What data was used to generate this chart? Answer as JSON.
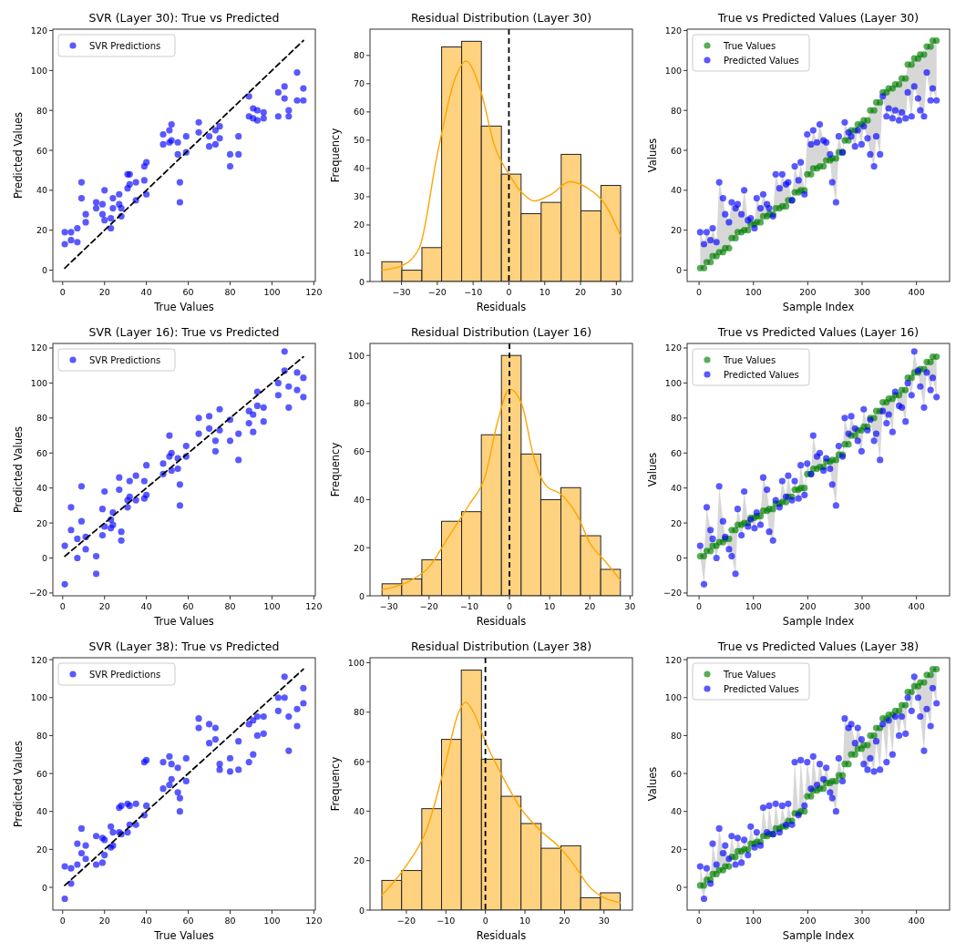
{
  "chart_data": [
    {
      "type": "scatter",
      "title": "SVR (Layer 30): True vs Predicted",
      "xlabel": "True Values",
      "ylabel": "Predicted Values",
      "xlim": [
        -4.7,
        120.7
      ],
      "ylim": [
        -5.7,
        120.7
      ],
      "xticks": [
        0,
        20,
        40,
        60,
        80,
        100,
        120
      ],
      "yticks": [
        0,
        20,
        40,
        60,
        80,
        100,
        120
      ],
      "legend": "top left",
      "marker": "circle",
      "x": [
        1,
        1,
        4,
        4,
        7,
        7,
        9,
        9,
        11,
        11,
        16,
        16,
        19,
        19,
        20,
        20,
        23,
        23,
        24,
        24,
        27,
        27,
        28,
        28,
        31,
        31,
        32,
        32,
        35,
        35,
        39,
        39,
        40,
        40,
        48,
        48,
        51,
        51,
        52,
        52,
        55,
        55,
        56,
        56,
        59,
        59,
        65,
        65,
        70,
        70,
        73,
        73,
        75,
        75,
        80,
        80,
        84,
        84,
        89,
        89,
        91,
        91,
        93,
        93,
        96,
        96,
        103,
        103,
        106,
        106,
        108,
        108,
        112,
        112,
        115,
        115
      ],
      "series": [
        {
          "name": "SVR Predictions",
          "color": "#0000ff",
          "values": [
            19,
            13,
            19,
            15,
            21,
            14,
            44,
            36,
            28,
            24,
            34,
            31,
            33,
            28,
            40,
            25,
            26,
            21,
            36,
            31,
            38,
            33,
            31,
            27,
            48,
            41,
            48,
            43,
            44,
            35,
            52,
            45,
            54,
            38,
            68,
            63,
            70,
            64,
            73,
            65,
            64,
            58,
            44,
            34,
            67,
            59,
            74,
            69,
            67,
            62,
            70,
            63,
            72,
            66,
            58,
            52,
            67,
            58,
            87,
            77,
            81,
            76,
            80,
            75,
            79,
            76,
            89,
            77,
            92,
            86,
            80,
            77,
            99,
            85,
            91,
            85
          ]
        },
        {
          "type": "line",
          "x": [
            1,
            115
          ],
          "values": [
            1,
            115
          ],
          "color": "#000000",
          "line_style": "dashed",
          "marker": "none"
        }
      ]
    },
    {
      "type": "histogram",
      "title": "Residual Distribution (Layer 30)",
      "xlabel": "Residuals",
      "ylabel": "Frequency",
      "xlim": [
        -38.8,
        34.5
      ],
      "ylim": [
        0,
        89.3
      ],
      "xticks": [
        -30,
        -20,
        -10,
        0,
        10,
        20,
        30
      ],
      "yticks": [
        0,
        10,
        20,
        30,
        40,
        50,
        60,
        70,
        80
      ],
      "bins": [
        -35.5,
        -29.9,
        -24.3,
        -18.8,
        -13.2,
        -7.7,
        -2.1,
        3.4,
        9.0,
        14.6,
        20.1,
        25.7,
        31.2
      ],
      "series": [
        {
          "color": "#ffd280",
          "values": [
            7,
            4,
            12,
            83,
            85,
            55,
            38,
            24,
            28,
            45,
            25,
            34
          ]
        },
        {
          "type": "line",
          "color": "#ffa500",
          "x": [
            -35.5,
            -30,
            -25,
            -20,
            -15,
            -12,
            -8,
            -4,
            0,
            4,
            7,
            12,
            17,
            22,
            27,
            31.2
          ],
          "values": [
            4,
            5.5,
            12,
            45,
            72,
            78,
            68,
            48,
            38,
            31,
            28.5,
            31,
            35.3,
            33,
            27,
            16
          ]
        }
      ],
      "ref_lines": [
        {
          "axis": "x",
          "value": 0,
          "color": "#000000",
          "line_style": "dashed"
        }
      ]
    },
    {
      "type": "scatter",
      "title": "True vs Predicted Values (Layer 30)",
      "xlabel": "Sample Index",
      "ylabel": "Values",
      "xlim": [
        -22,
        461
      ],
      "ylim": [
        -5.7,
        120.7
      ],
      "xticks": [
        0,
        100,
        200,
        300,
        400
      ],
      "yticks": [
        0,
        20,
        40,
        60,
        80,
        100,
        120
      ],
      "legend": "top left",
      "marker": "circle",
      "x": [
        2,
        9,
        14,
        21,
        25,
        32,
        37,
        44,
        48,
        55,
        60,
        67,
        71,
        78,
        83,
        90,
        95,
        102,
        106,
        113,
        118,
        125,
        129,
        136,
        141,
        148,
        153,
        160,
        164,
        171,
        176,
        183,
        187,
        194,
        199,
        206,
        210,
        217,
        222,
        229,
        234,
        241,
        245,
        252,
        257,
        264,
        268,
        275,
        280,
        287,
        292,
        299,
        303,
        310,
        315,
        322,
        326,
        333,
        338,
        345,
        349,
        356,
        361,
        368,
        373,
        380,
        384,
        391,
        396,
        403,
        407,
        414,
        419,
        426,
        430,
        437
      ],
      "series": [
        {
          "name": "True Values",
          "color": "#008000",
          "values": [
            1,
            1,
            4,
            4,
            7,
            7,
            9,
            9,
            11,
            11,
            16,
            16,
            19,
            19,
            20,
            20,
            23,
            23,
            24,
            24,
            27,
            27,
            28,
            28,
            31,
            31,
            32,
            32,
            35,
            35,
            39,
            39,
            40,
            40,
            48,
            48,
            51,
            51,
            52,
            52,
            55,
            55,
            56,
            56,
            59,
            59,
            65,
            65,
            70,
            70,
            73,
            73,
            75,
            75,
            80,
            80,
            84,
            84,
            89,
            89,
            91,
            91,
            93,
            93,
            96,
            96,
            103,
            103,
            106,
            106,
            108,
            108,
            112,
            112,
            115,
            115
          ]
        },
        {
          "name": "Predicted Values",
          "color": "#0000ff",
          "values": [
            19,
            13,
            19,
            15,
            21,
            14,
            44,
            36,
            28,
            24,
            34,
            31,
            33,
            28,
            40,
            25,
            26,
            21,
            36,
            31,
            38,
            33,
            31,
            27,
            48,
            41,
            48,
            43,
            44,
            35,
            52,
            45,
            54,
            38,
            68,
            63,
            70,
            64,
            73,
            65,
            64,
            58,
            44,
            34,
            67,
            59,
            74,
            69,
            67,
            62,
            70,
            63,
            72,
            66,
            58,
            52,
            67,
            58,
            87,
            77,
            81,
            76,
            80,
            75,
            79,
            76,
            89,
            77,
            92,
            86,
            80,
            77,
            99,
            85,
            91,
            85
          ],
          "lower": [
            1,
            1,
            4,
            4,
            7,
            7,
            9,
            9,
            11,
            11,
            16,
            16,
            19,
            19,
            20,
            20,
            23,
            21,
            24,
            24,
            27,
            27,
            28,
            27,
            31,
            31,
            32,
            32,
            35,
            35,
            39,
            39,
            40,
            38,
            48,
            48,
            51,
            51,
            52,
            52,
            55,
            55,
            44,
            34,
            59,
            59,
            65,
            65,
            67,
            62,
            70,
            63,
            72,
            66,
            58,
            52,
            67,
            58,
            87,
            77,
            81,
            76,
            80,
            75,
            79,
            76,
            89,
            77,
            92,
            86,
            80,
            77,
            99,
            85,
            91,
            85
          ],
          "upper": [
            19,
            13,
            19,
            15,
            21,
            14,
            44,
            36,
            28,
            24,
            34,
            31,
            33,
            28,
            40,
            25,
            26,
            23,
            36,
            31,
            38,
            33,
            31,
            28,
            48,
            41,
            48,
            43,
            44,
            35,
            52,
            45,
            54,
            40,
            68,
            63,
            70,
            64,
            73,
            65,
            64,
            58,
            56,
            56,
            67,
            59,
            74,
            69,
            70,
            70,
            73,
            73,
            75,
            75,
            80,
            80,
            84,
            84,
            89,
            89,
            91,
            91,
            93,
            93,
            96,
            96,
            103,
            103,
            106,
            106,
            108,
            108,
            112,
            112,
            115,
            115
          ]
        }
      ]
    },
    {
      "type": "scatter",
      "title": "SVR (Layer 16): True vs Predicted",
      "xlabel": "True Values",
      "ylabel": "Predicted Values",
      "xlim": [
        -4.7,
        120.7
      ],
      "ylim": [
        -21.6,
        122.6
      ],
      "xticks": [
        0,
        20,
        40,
        60,
        80,
        100,
        120
      ],
      "yticks": [
        -20,
        0,
        20,
        40,
        60,
        80,
        100,
        120
      ],
      "legend": "top left",
      "marker": "circle",
      "x": [
        1,
        1,
        4,
        4,
        7,
        7,
        9,
        9,
        11,
        11,
        16,
        16,
        19,
        19,
        20,
        20,
        23,
        23,
        24,
        24,
        27,
        27,
        28,
        28,
        31,
        31,
        32,
        32,
        35,
        35,
        39,
        39,
        40,
        40,
        48,
        48,
        51,
        51,
        52,
        52,
        55,
        55,
        56,
        56,
        59,
        59,
        65,
        65,
        70,
        70,
        73,
        73,
        75,
        75,
        80,
        80,
        84,
        84,
        89,
        89,
        91,
        91,
        93,
        93,
        96,
        96,
        103,
        103,
        106,
        106,
        108,
        108,
        112,
        112,
        115,
        115
      ],
      "series": [
        {
          "name": "SVR Predictions",
          "color": "#0000ff",
          "values": [
            7,
            -15,
            29,
            16,
            11,
            0,
            41,
            21,
            12,
            5,
            1,
            -9,
            28,
            13,
            38,
            18,
            22,
            17,
            26,
            19,
            46,
            39,
            15,
            10,
            33,
            29,
            44,
            35,
            47,
            33,
            44,
            34,
            53,
            36,
            54,
            48,
            70,
            58,
            60,
            50,
            57,
            51,
            42,
            30,
            64,
            58,
            80,
            71,
            81,
            74,
            67,
            61,
            85,
            73,
            79,
            67,
            71,
            56,
            84,
            77,
            82,
            72,
            95,
            87,
            86,
            78,
            100,
            93,
            118,
            107,
            98,
            86,
            106,
            96,
            103,
            92
          ]
        },
        {
          "type": "line",
          "x": [
            1,
            115
          ],
          "values": [
            1,
            115
          ],
          "color": "#000000",
          "line_style": "dashed",
          "marker": "none"
        }
      ]
    },
    {
      "type": "histogram",
      "title": "Residual Distribution (Layer 16)",
      "xlabel": "Residuals",
      "ylabel": "Frequency",
      "xlim": [
        -34.7,
        30.6
      ],
      "ylim": [
        0,
        105
      ],
      "xticks": [
        -30,
        -20,
        -10,
        0,
        10,
        20,
        30
      ],
      "yticks": [
        0,
        20,
        40,
        60,
        80,
        100
      ],
      "bins": [
        -31.7,
        -26.8,
        -21.8,
        -16.9,
        -11.9,
        -7.0,
        -2.0,
        2.9,
        7.8,
        12.8,
        17.7,
        22.7,
        27.6
      ],
      "series": [
        {
          "color": "#ffd280",
          "values": [
            5,
            7,
            15,
            31,
            35,
            67,
            100,
            59,
            40,
            45,
            25,
            11
          ]
        },
        {
          "type": "line",
          "color": "#ffa500",
          "x": [
            -31.7,
            -25,
            -20,
            -15,
            -10,
            -6,
            -3,
            0,
            3,
            6,
            9,
            13,
            17,
            20,
            24,
            27.6
          ],
          "values": [
            2.5,
            6,
            12,
            25,
            38,
            50,
            72,
            86,
            80,
            58,
            46,
            42,
            33,
            22,
            14,
            6.5
          ]
        }
      ],
      "ref_lines": [
        {
          "axis": "x",
          "value": 0,
          "color": "#000000",
          "line_style": "dashed"
        }
      ]
    },
    {
      "type": "scatter",
      "title": "True vs Predicted Values (Layer 16)",
      "xlabel": "Sample Index",
      "ylabel": "Values",
      "xlim": [
        -22,
        461
      ],
      "ylim": [
        -21.6,
        122.6
      ],
      "xticks": [
        0,
        100,
        200,
        300,
        400
      ],
      "yticks": [
        -20,
        0,
        20,
        40,
        60,
        80,
        100,
        120
      ],
      "legend": "top left",
      "marker": "circle",
      "x": [
        2,
        9,
        14,
        21,
        25,
        32,
        37,
        44,
        48,
        55,
        60,
        67,
        71,
        78,
        83,
        90,
        95,
        102,
        106,
        113,
        118,
        125,
        129,
        136,
        141,
        148,
        153,
        160,
        164,
        171,
        176,
        183,
        187,
        194,
        199,
        206,
        210,
        217,
        222,
        229,
        234,
        241,
        245,
        252,
        257,
        264,
        268,
        275,
        280,
        287,
        292,
        299,
        303,
        310,
        315,
        322,
        326,
        333,
        338,
        345,
        349,
        356,
        361,
        368,
        373,
        380,
        384,
        391,
        396,
        403,
        407,
        414,
        419,
        426,
        430,
        437
      ],
      "series": [
        {
          "name": "True Values",
          "color": "#008000",
          "values": [
            1,
            1,
            4,
            4,
            7,
            7,
            9,
            9,
            11,
            11,
            16,
            16,
            19,
            19,
            20,
            20,
            23,
            23,
            24,
            24,
            27,
            27,
            28,
            28,
            31,
            31,
            32,
            32,
            35,
            35,
            39,
            39,
            40,
            40,
            48,
            48,
            51,
            51,
            52,
            52,
            55,
            55,
            56,
            56,
            59,
            59,
            65,
            65,
            70,
            70,
            73,
            73,
            75,
            75,
            80,
            80,
            84,
            84,
            89,
            89,
            91,
            91,
            93,
            93,
            96,
            96,
            103,
            103,
            106,
            106,
            108,
            108,
            112,
            112,
            115,
            115
          ]
        },
        {
          "name": "Predicted Values",
          "color": "#0000ff",
          "values": [
            7,
            -15,
            29,
            16,
            11,
            0,
            41,
            21,
            12,
            5,
            1,
            -9,
            28,
            13,
            38,
            18,
            22,
            17,
            26,
            19,
            46,
            39,
            15,
            10,
            33,
            29,
            44,
            35,
            47,
            33,
            44,
            34,
            53,
            36,
            54,
            48,
            70,
            58,
            60,
            50,
            57,
            51,
            42,
            30,
            64,
            58,
            80,
            71,
            81,
            74,
            67,
            61,
            85,
            73,
            79,
            67,
            71,
            56,
            84,
            77,
            82,
            72,
            95,
            87,
            86,
            78,
            100,
            93,
            118,
            107,
            98,
            86,
            106,
            96,
            103,
            92
          ],
          "lower": [
            1,
            -15,
            4,
            4,
            7,
            0,
            9,
            9,
            11,
            5,
            1,
            -9,
            19,
            13,
            20,
            18,
            22,
            17,
            24,
            19,
            27,
            27,
            15,
            10,
            31,
            29,
            32,
            32,
            35,
            33,
            39,
            34,
            40,
            36,
            48,
            48,
            51,
            51,
            52,
            50,
            55,
            51,
            42,
            30,
            59,
            58,
            65,
            65,
            70,
            70,
            67,
            61,
            75,
            73,
            79,
            67,
            71,
            56,
            84,
            77,
            82,
            72,
            93,
            87,
            86,
            78,
            100,
            93,
            106,
            106,
            98,
            86,
            106,
            96,
            103,
            92
          ],
          "upper": [
            7,
            1,
            29,
            16,
            11,
            7,
            41,
            21,
            12,
            11,
            16,
            16,
            28,
            19,
            38,
            20,
            23,
            23,
            26,
            24,
            46,
            39,
            28,
            28,
            33,
            31,
            44,
            35,
            47,
            35,
            44,
            39,
            53,
            40,
            54,
            48,
            70,
            58,
            60,
            52,
            57,
            55,
            56,
            56,
            64,
            59,
            80,
            71,
            81,
            74,
            73,
            73,
            85,
            75,
            80,
            80,
            84,
            84,
            89,
            89,
            91,
            91,
            95,
            93,
            96,
            96,
            103,
            103,
            118,
            107,
            108,
            108,
            112,
            112,
            115,
            115
          ]
        }
      ]
    },
    {
      "type": "scatter",
      "title": "SVR (Layer 38): True vs Predicted",
      "xlabel": "True Values",
      "ylabel": "Predicted Values",
      "xlim": [
        -4.7,
        120.7
      ],
      "ylim": [
        -12,
        121
      ],
      "xticks": [
        0,
        20,
        40,
        60,
        80,
        100,
        120
      ],
      "yticks": [
        0,
        20,
        40,
        60,
        80,
        100,
        120
      ],
      "legend": "top left",
      "marker": "circle",
      "x": [
        1,
        1,
        4,
        4,
        7,
        7,
        9,
        9,
        11,
        11,
        16,
        16,
        19,
        19,
        20,
        20,
        23,
        23,
        24,
        24,
        27,
        27,
        28,
        28,
        31,
        31,
        32,
        32,
        35,
        35,
        39,
        39,
        40,
        40,
        48,
        48,
        51,
        51,
        52,
        52,
        55,
        55,
        56,
        56,
        59,
        59,
        65,
        65,
        70,
        70,
        73,
        73,
        75,
        75,
        80,
        80,
        84,
        84,
        89,
        89,
        91,
        91,
        93,
        93,
        96,
        96,
        103,
        103,
        106,
        106,
        108,
        108,
        112,
        112,
        115,
        115
      ],
      "series": [
        {
          "name": "SVR Predictions",
          "color": "#0000ff",
          "values": [
            11,
            -6,
            10,
            2,
            23,
            12,
            31,
            18,
            22,
            15,
            27,
            12,
            26,
            13,
            25,
            17,
            32,
            21,
            29,
            22,
            42,
            29,
            43,
            28,
            44,
            29,
            43,
            33,
            44,
            33,
            66,
            38,
            67,
            43,
            66,
            52,
            69,
            54,
            65,
            57,
            63,
            50,
            47,
            40,
            68,
            56,
            89,
            84,
            86,
            76,
            84,
            78,
            65,
            62,
            68,
            61,
            77,
            62,
            86,
            66,
            88,
            70,
            90,
            80,
            90,
            81,
            100,
            93,
            111,
            100,
            90,
            72,
            94,
            85,
            105,
            97
          ]
        },
        {
          "type": "line",
          "x": [
            1,
            115
          ],
          "values": [
            1,
            115
          ],
          "color": "#000000",
          "line_style": "dashed",
          "marker": "none"
        }
      ]
    },
    {
      "type": "histogram",
      "title": "Residual Distribution (Layer 38)",
      "xlabel": "Residuals",
      "ylabel": "Frequency",
      "xlim": [
        -29.2,
        37.2
      ],
      "ylim": [
        0,
        102
      ],
      "xticks": [
        -20,
        -10,
        0,
        10,
        20,
        30
      ],
      "yticks": [
        0,
        20,
        40,
        60,
        80,
        100
      ],
      "bins": [
        -26.2,
        -21.2,
        -16.1,
        -11.1,
        -6.1,
        -1.0,
        4.0,
        9.0,
        14.1,
        19.1,
        24.1,
        29.1,
        34.1
      ],
      "series": [
        {
          "color": "#ffd280",
          "values": [
            12,
            16,
            41,
            69,
            97,
            61,
            46,
            35,
            25,
            26,
            5,
            7
          ]
        },
        {
          "type": "line",
          "color": "#ffa500",
          "x": [
            -26.2,
            -20,
            -15,
            -10,
            -7,
            -5,
            -3,
            0,
            4,
            9,
            14,
            19,
            23,
            26,
            30,
            34.1
          ],
          "values": [
            6,
            18,
            32,
            60,
            79,
            84,
            80,
            68,
            55,
            41,
            32,
            25,
            17,
            10,
            5,
            3
          ]
        }
      ],
      "ref_lines": [
        {
          "axis": "x",
          "value": 0,
          "color": "#000000",
          "line_style": "dashed"
        }
      ]
    },
    {
      "type": "scatter",
      "title": "True vs Predicted Values (Layer 38)",
      "xlabel": "Sample Index",
      "ylabel": "Values",
      "xlim": [
        -22,
        461
      ],
      "ylim": [
        -12,
        121
      ],
      "xticks": [
        0,
        100,
        200,
        300,
        400
      ],
      "yticks": [
        0,
        20,
        40,
        60,
        80,
        100,
        120
      ],
      "legend": "top left",
      "marker": "circle",
      "x": [
        2,
        9,
        14,
        21,
        25,
        32,
        37,
        44,
        48,
        55,
        60,
        67,
        71,
        78,
        83,
        90,
        95,
        102,
        106,
        113,
        118,
        125,
        129,
        136,
        141,
        148,
        153,
        160,
        164,
        171,
        176,
        183,
        187,
        194,
        199,
        206,
        210,
        217,
        222,
        229,
        234,
        241,
        245,
        252,
        257,
        264,
        268,
        275,
        280,
        287,
        292,
        299,
        303,
        310,
        315,
        322,
        326,
        333,
        338,
        345,
        349,
        356,
        361,
        368,
        373,
        380,
        384,
        391,
        396,
        403,
        407,
        414,
        419,
        426,
        430,
        437
      ],
      "series": [
        {
          "name": "True Values",
          "color": "#008000",
          "values": [
            1,
            1,
            4,
            4,
            7,
            7,
            9,
            9,
            11,
            11,
            16,
            16,
            19,
            19,
            20,
            20,
            23,
            23,
            24,
            24,
            27,
            27,
            28,
            28,
            31,
            31,
            32,
            32,
            35,
            35,
            39,
            39,
            40,
            40,
            48,
            48,
            51,
            51,
            52,
            52,
            55,
            55,
            56,
            56,
            59,
            59,
            65,
            65,
            70,
            70,
            73,
            73,
            75,
            75,
            80,
            80,
            84,
            84,
            89,
            89,
            91,
            91,
            93,
            93,
            96,
            96,
            103,
            103,
            106,
            106,
            108,
            108,
            112,
            112,
            115,
            115
          ]
        },
        {
          "name": "Predicted Values",
          "color": "#0000ff",
          "values": [
            11,
            -6,
            10,
            2,
            23,
            12,
            31,
            18,
            22,
            15,
            27,
            12,
            26,
            13,
            25,
            17,
            32,
            21,
            29,
            22,
            42,
            29,
            43,
            28,
            44,
            29,
            43,
            33,
            44,
            33,
            66,
            38,
            67,
            43,
            66,
            52,
            69,
            54,
            65,
            57,
            63,
            50,
            47,
            40,
            68,
            56,
            89,
            84,
            86,
            76,
            84,
            78,
            65,
            62,
            68,
            61,
            77,
            62,
            86,
            66,
            88,
            70,
            90,
            80,
            90,
            81,
            100,
            93,
            111,
            100,
            90,
            72,
            94,
            85,
            105,
            97
          ],
          "lower": [
            1,
            -6,
            4,
            2,
            7,
            7,
            9,
            9,
            11,
            11,
            16,
            12,
            19,
            13,
            20,
            17,
            23,
            21,
            24,
            22,
            27,
            27,
            28,
            28,
            31,
            29,
            32,
            32,
            35,
            33,
            39,
            38,
            40,
            40,
            48,
            48,
            51,
            51,
            52,
            52,
            55,
            50,
            47,
            40,
            59,
            56,
            65,
            65,
            70,
            70,
            73,
            73,
            65,
            62,
            68,
            61,
            77,
            62,
            86,
            66,
            88,
            70,
            90,
            80,
            90,
            81,
            100,
            93,
            106,
            100,
            90,
            72,
            94,
            85,
            105,
            97
          ],
          "upper": [
            11,
            1,
            10,
            4,
            23,
            12,
            31,
            18,
            22,
            15,
            27,
            16,
            26,
            19,
            25,
            20,
            32,
            23,
            29,
            24,
            42,
            29,
            43,
            28,
            44,
            31,
            43,
            33,
            44,
            35,
            66,
            39,
            67,
            43,
            66,
            52,
            69,
            54,
            65,
            57,
            63,
            55,
            56,
            56,
            68,
            59,
            89,
            84,
            86,
            76,
            84,
            78,
            75,
            75,
            80,
            80,
            84,
            84,
            89,
            89,
            91,
            91,
            93,
            93,
            96,
            96,
            103,
            103,
            111,
            106,
            108,
            108,
            112,
            112,
            115,
            115
          ]
        }
      ]
    }
  ]
}
